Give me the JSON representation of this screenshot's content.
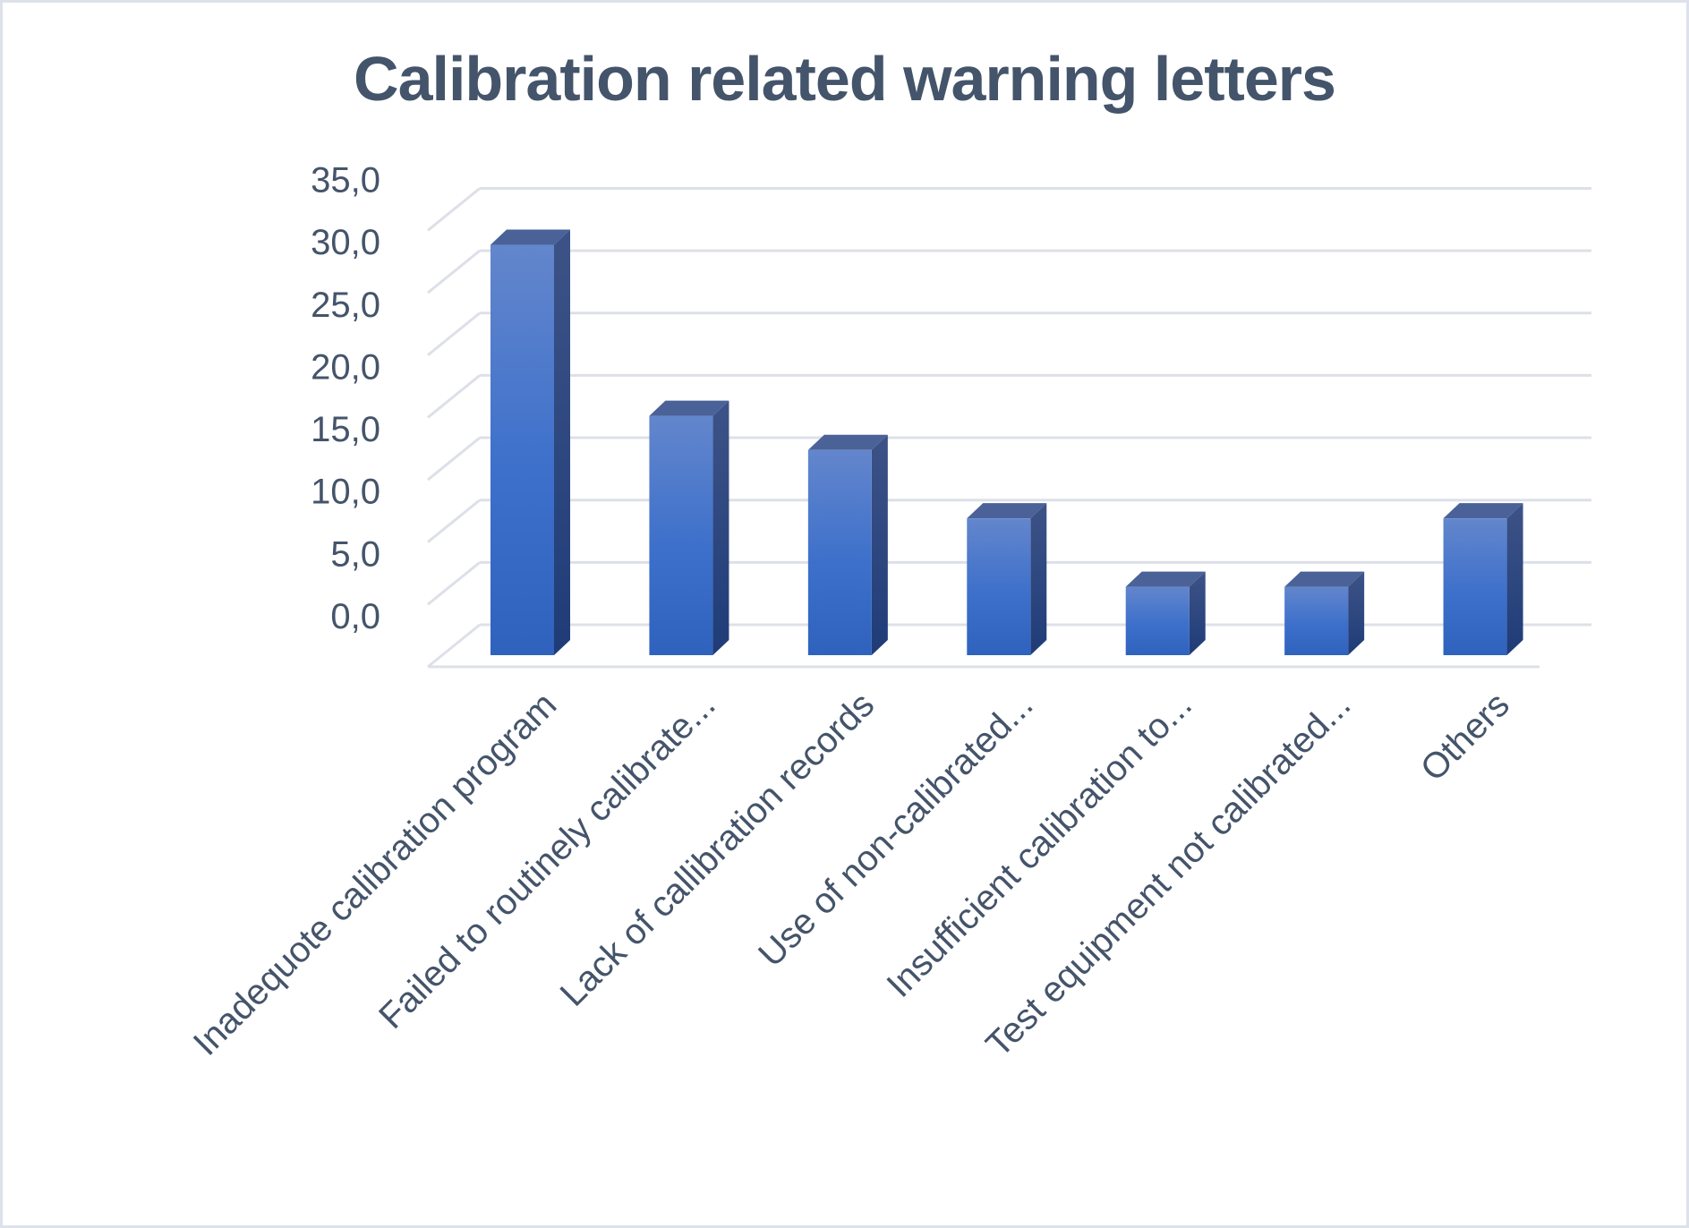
{
  "chart_data": {
    "type": "bar",
    "style": "3d-clustered-column",
    "title": "Calibration related warning letters",
    "xlabel": "",
    "ylabel": "",
    "ylim": [
      0,
      35
    ],
    "y_ticks": [
      "0,0",
      "5,0",
      "10,0",
      "15,0",
      "20,0",
      "25,0",
      "30,0",
      "35,0"
    ],
    "grid": true,
    "legend": "none",
    "categories": [
      "Inadequote calibration program",
      "Failed to routinely calibrate...",
      "Lack of callibration records",
      "Use of non-calibrated...",
      "Insufficient calibration to...",
      "Test equipment not calibrated...",
      "Others"
    ],
    "values": [
      32.4,
      18.9,
      16.2,
      10.8,
      5.4,
      5.4,
      10.8
    ],
    "colors": {
      "bar_front_top": "#6386cc",
      "bar_front_bottom": "#2f62bd",
      "bar_side": "#2a4a8c",
      "bar_top": "#4a6298",
      "grid": "#dde0e8",
      "text": "#44546a"
    }
  }
}
